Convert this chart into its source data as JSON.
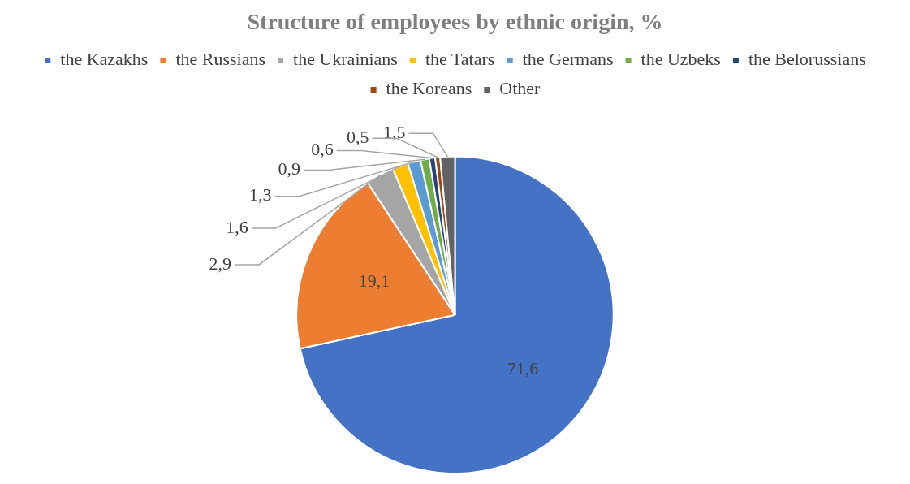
{
  "chart_data": {
    "type": "pie",
    "title": "Structure of employees by ethnic origin, %",
    "categories": [
      "the Kazakhs",
      "the Russians",
      "the Ukrainians",
      "the Tatars",
      "the Germans",
      "the Uzbeks",
      "the Belorussians",
      "the Koreans",
      "Other"
    ],
    "values": [
      71.6,
      19.1,
      2.9,
      1.6,
      1.3,
      0.9,
      0.6,
      0.5,
      1.5
    ],
    "value_labels": [
      "71,6",
      "19,1",
      "2,9",
      "1,6",
      "1,3",
      "0,9",
      "0,6",
      "0,5",
      "1,5"
    ],
    "colors": [
      "#4472c4",
      "#ed7d31",
      "#a5a5a5",
      "#ffc000",
      "#5b9bd5",
      "#70ad47",
      "#264478",
      "#9e480e",
      "#636363"
    ],
    "legend": "top"
  }
}
